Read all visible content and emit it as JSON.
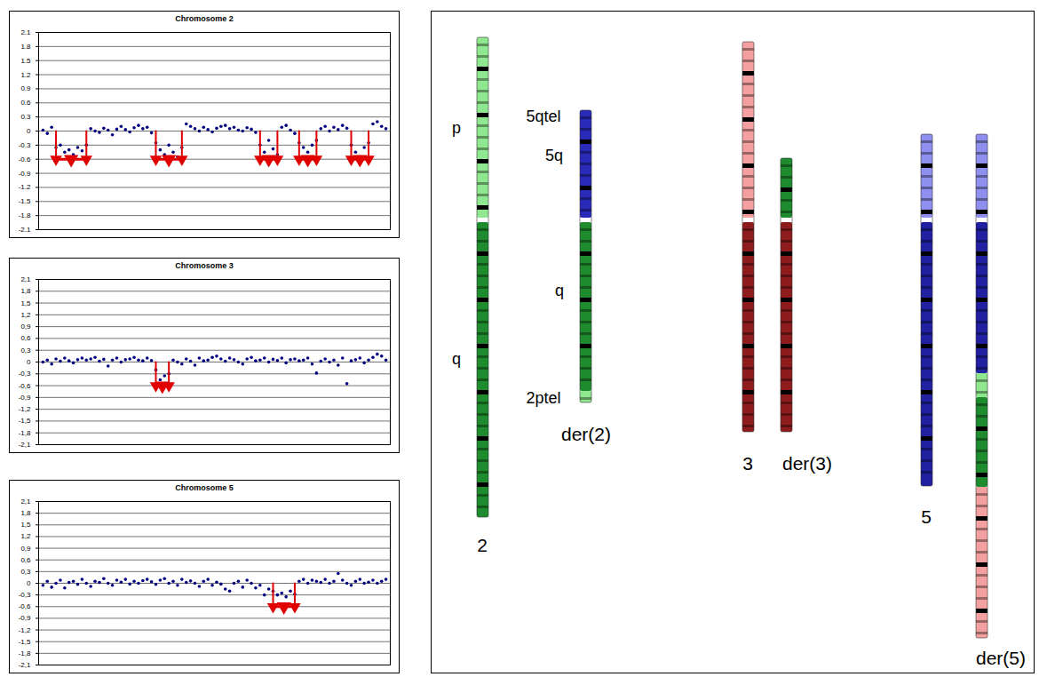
{
  "chart_data": [
    {
      "type": "scatter",
      "title": "Chromosome 2",
      "x": [
        1,
        2,
        3,
        4,
        5,
        6,
        7,
        8,
        9,
        10,
        11,
        12,
        13,
        14,
        15,
        16,
        17,
        18,
        19,
        20,
        21,
        22,
        23,
        24,
        25,
        26,
        27,
        28,
        29,
        30,
        31,
        32,
        33,
        34,
        35,
        36,
        37,
        38,
        39,
        40,
        41,
        42,
        43,
        44,
        45,
        46,
        47,
        48,
        49,
        50,
        51,
        52,
        53,
        54,
        55,
        56,
        57,
        58,
        59,
        60,
        61,
        62,
        63,
        64,
        65,
        66,
        67,
        68,
        69,
        70,
        71,
        72,
        73,
        74,
        75,
        76,
        77,
        78,
        79,
        80
      ],
      "values": [
        0.02,
        -0.05,
        0.08,
        -0.35,
        -0.3,
        -0.45,
        -0.4,
        -0.5,
        -0.35,
        -0.42,
        -0.3,
        0.05,
        0.0,
        -0.03,
        0.06,
        0.02,
        -0.08,
        0.04,
        0.1,
        0.03,
        -0.02,
        0.07,
        0.12,
        0.05,
        0.08,
        -0.04,
        -0.25,
        -0.4,
        -0.5,
        -0.3,
        -0.45,
        -0.55,
        -0.35,
        0.15,
        0.1,
        0.05,
        0.0,
        0.08,
        0.03,
        -0.02,
        0.06,
        0.1,
        0.12,
        0.05,
        0.08,
        0.02,
        0.0,
        0.07,
        0.04,
        -0.03,
        -0.3,
        -0.45,
        -0.2,
        -0.38,
        -0.5,
        0.08,
        0.12,
        0.02,
        -0.05,
        -0.25,
        -0.35,
        -0.45,
        -0.3,
        -0.2,
        0.05,
        0.1,
        0.0,
        0.08,
        0.03,
        0.12,
        0.06,
        -0.3,
        -0.45,
        -0.55,
        -0.35,
        -0.25,
        0.15,
        0.2,
        0.1,
        0.05
      ],
      "color": "#000080",
      "marker": "circle",
      "xlim": [
        0,
        81
      ],
      "ylim": [
        -2.1,
        2.1
      ],
      "yticks": [
        2.1,
        1.8,
        1.5,
        1.2,
        0.9,
        0.6,
        0.3,
        0,
        -0.3,
        -0.6,
        -0.9,
        -1.2,
        -1.5,
        -1.8,
        -2.1
      ],
      "grid": true,
      "tick_labels": "y",
      "deletions": {
        "color": "#e00000",
        "y": -0.6,
        "ranges": [
          [
            4,
            11
          ],
          [
            27,
            33
          ],
          [
            51,
            55
          ],
          [
            60,
            64
          ],
          [
            72,
            76
          ]
        ]
      }
    },
    {
      "type": "scatter",
      "title": "Chromosome 3",
      "x": [
        1,
        2,
        3,
        4,
        5,
        6,
        7,
        8,
        9,
        10,
        11,
        12,
        13,
        14,
        15,
        16,
        17,
        18,
        19,
        20,
        21,
        22,
        23,
        24,
        25,
        26,
        27,
        28,
        29,
        30,
        31,
        32,
        33,
        34,
        35,
        36,
        37,
        38,
        39,
        40,
        41,
        42,
        43,
        44,
        45,
        46,
        47,
        48,
        49,
        50,
        51,
        52,
        53,
        54,
        55,
        56,
        57,
        58,
        59,
        60,
        61,
        62,
        63,
        64,
        65,
        66,
        67,
        68,
        69,
        70,
        71,
        72,
        73,
        74,
        75,
        76,
        77,
        78,
        79,
        80
      ],
      "values": [
        0.0,
        0.05,
        -0.05,
        0.08,
        0.02,
        0.1,
        0.03,
        -0.02,
        0.06,
        0.1,
        0.05,
        0.08,
        0.12,
        0.02,
        0.07,
        -0.1,
        0.05,
        0.1,
        0.0,
        0.06,
        0.08,
        0.12,
        0.05,
        0.03,
        0.1,
        0.04,
        -0.2,
        -0.45,
        -0.35,
        -0.3,
        0.05,
        0.0,
        -0.05,
        0.08,
        0.02,
        -0.08,
        0.1,
        0.03,
        0.05,
        0.12,
        0.15,
        0.08,
        0.02,
        0.1,
        0.06,
        0.0,
        -0.05,
        0.08,
        0.12,
        0.03,
        0.05,
        0.1,
        0.0,
        0.07,
        0.04,
        0.1,
        -0.02,
        0.06,
        0.08,
        0.03,
        0.05,
        0.1,
        -0.05,
        -0.28,
        0.02,
        0.08,
        0.0,
        0.05,
        -0.08,
        0.1,
        -0.55,
        0.03,
        0.06,
        0.1,
        -0.02,
        0.05,
        0.12,
        0.2,
        0.15,
        0.05
      ],
      "color": "#000080",
      "marker": "circle",
      "xlim": [
        0,
        81
      ],
      "ylim": [
        -2.1,
        2.1
      ],
      "yticks": [
        {
          "value": 2.1,
          "label": "2,1"
        },
        {
          "value": 1.8,
          "label": "1,8"
        },
        {
          "value": 1.5,
          "label": "1,5"
        },
        {
          "value": 1.2,
          "label": "1,2"
        },
        {
          "value": 0.9,
          "label": "0,9"
        },
        {
          "value": 0.6,
          "label": "0,6"
        },
        {
          "value": 0.3,
          "label": "0,3"
        },
        0,
        {
          "value": -0.3,
          "label": "-0,3"
        },
        {
          "value": -0.6,
          "label": "-0,6"
        },
        {
          "value": -0.9,
          "label": "-0,9"
        },
        {
          "value": -1.2,
          "label": "-1,2"
        },
        {
          "value": -1.5,
          "label": "-1,5"
        },
        {
          "value": -1.8,
          "label": "-1,8"
        },
        {
          "value": -2.1,
          "label": "-2,1"
        }
      ],
      "grid": true,
      "tick_labels": "y",
      "deletions": {
        "color": "#e00000",
        "y": -0.6,
        "ranges": [
          [
            27,
            30
          ]
        ]
      }
    },
    {
      "type": "scatter",
      "title": "Chromosome 5",
      "x": [
        1,
        2,
        3,
        4,
        5,
        6,
        7,
        8,
        9,
        10,
        11,
        12,
        13,
        14,
        15,
        16,
        17,
        18,
        19,
        20,
        21,
        22,
        23,
        24,
        25,
        26,
        27,
        28,
        29,
        30,
        31,
        32,
        33,
        34,
        35,
        36,
        37,
        38,
        39,
        40,
        41,
        42,
        43,
        44,
        45,
        46,
        47,
        48,
        49,
        50,
        51,
        52,
        53,
        54,
        55,
        56,
        57,
        58,
        59,
        60,
        61,
        62,
        63,
        64,
        65,
        66,
        67,
        68,
        69,
        70,
        71,
        72,
        73,
        74,
        75,
        76,
        77,
        78,
        79,
        80
      ],
      "values": [
        -0.05,
        0.05,
        -0.1,
        0.0,
        0.08,
        -0.12,
        0.02,
        0.05,
        -0.03,
        0.1,
        0.0,
        -0.08,
        0.05,
        0.02,
        0.12,
        0.0,
        -0.05,
        0.08,
        0.03,
        0.1,
        -0.02,
        0.05,
        0.0,
        0.07,
        0.1,
        0.04,
        -0.03,
        0.08,
        0.12,
        0.0,
        0.05,
        -0.05,
        0.1,
        0.02,
        0.06,
        0.0,
        -0.08,
        0.05,
        0.1,
        -0.05,
        0.03,
        -0.02,
        -0.15,
        -0.2,
        0.0,
        0.05,
        -0.1,
        0.08,
        0.0,
        -0.12,
        -0.05,
        -0.3,
        -0.15,
        -0.2,
        -0.3,
        -0.25,
        -0.35,
        -0.2,
        -0.28,
        0.05,
        0.1,
        0.0,
        0.08,
        0.05,
        0.02,
        0.1,
        0.0,
        0.05,
        0.25,
        0.08,
        0.0,
        -0.05,
        0.05,
        0.1,
        0.0,
        0.03,
        0.08,
        0.0,
        0.05,
        0.1
      ],
      "color": "#000080",
      "marker": "circle",
      "xlim": [
        0,
        81
      ],
      "ylim": [
        -2.1,
        2.1
      ],
      "yticks": [
        {
          "value": 2.1,
          "label": "2,1"
        },
        {
          "value": 1.8,
          "label": "1,8"
        },
        {
          "value": 1.5,
          "label": "1,5"
        },
        {
          "value": 1.2,
          "label": "1,2"
        },
        {
          "value": 0.9,
          "label": "0,9"
        },
        {
          "value": 0.6,
          "label": "0,6"
        },
        {
          "value": 0.3,
          "label": "0,3"
        },
        0,
        {
          "value": -0.3,
          "label": "-0,3"
        },
        {
          "value": -0.6,
          "label": "-0,6"
        },
        {
          "value": -0.9,
          "label": "-0,9"
        },
        {
          "value": -1.2,
          "label": "-1,2"
        },
        {
          "value": -1.5,
          "label": "-1,5"
        },
        {
          "value": -1.8,
          "label": "-1,8"
        },
        {
          "value": -2.1,
          "label": "-2,1"
        }
      ],
      "grid": true,
      "tick_labels": "y",
      "deletions": {
        "color": "#e00000",
        "y": -0.6,
        "ranges": [
          [
            54,
            59
          ]
        ]
      }
    }
  ],
  "diagram": {
    "chromosomes": [
      {
        "caption": "2",
        "labels": [
          "p",
          "q"
        ],
        "segments": [
          "#8fe88f",
          "#1e8c2e"
        ]
      },
      {
        "caption": "der(2)",
        "labels": [
          "5qtel",
          "5q",
          "q",
          "2ptel"
        ],
        "segments": [
          "#2a2ab8",
          "#1e8c2e",
          "#8fe88f"
        ]
      },
      {
        "caption": "3",
        "labels": [],
        "segments": [
          "#f4a0a0",
          "#8e1c1c"
        ]
      },
      {
        "caption": "der(3)",
        "labels": [],
        "segments": [
          "#1e8c2e",
          "#8e1c1c"
        ]
      },
      {
        "caption": "5",
        "labels": [],
        "segments": [
          "#8f8ff0",
          "#2020a0"
        ]
      },
      {
        "caption": "der(5)",
        "labels": [],
        "segments": [
          "#8f8ff0",
          "#2020a0",
          "#8fe88f",
          "#1e8c2e",
          "#f4a0a0"
        ]
      }
    ]
  }
}
